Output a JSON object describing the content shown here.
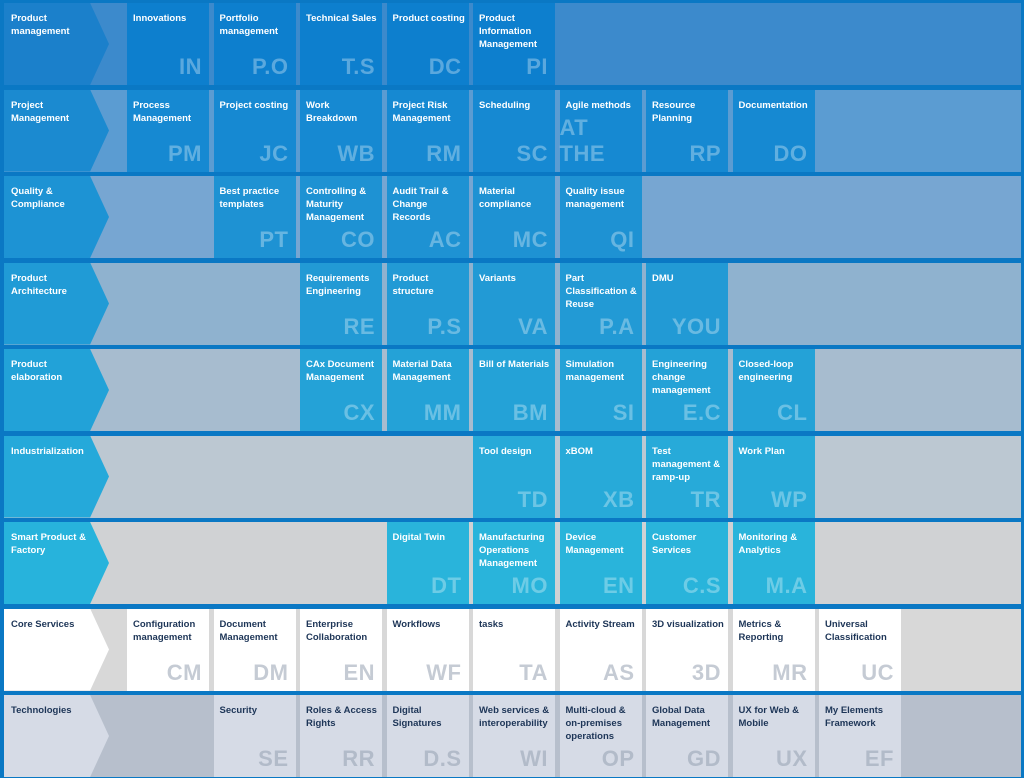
{
  "colors": {
    "frame": "#0a78c4",
    "core_bg": "#ffffff",
    "tech_bg": "#d6dbe6",
    "dark_text": "#1d3557"
  },
  "rows": [
    {
      "label": "Product management",
      "head_color": "#1b80cb",
      "row_color": "#3c8acc",
      "cell_color": "#0d7fce",
      "dark": false,
      "cells": [
        {
          "col": 1,
          "label": "Innovations",
          "code": "IN"
        },
        {
          "col": 2,
          "label": "Portfolio management",
          "code": "P.O"
        },
        {
          "col": 3,
          "label": "Technical Sales",
          "code": "T.S"
        },
        {
          "col": 4,
          "label": "Product costing",
          "code": "DC"
        },
        {
          "col": 5,
          "label": "Product Information Management",
          "code": "PI"
        }
      ]
    },
    {
      "label": "Project Management",
      "head_color": "#1b8ad0",
      "row_color": "#5b9cd2",
      "cell_color": "#1689d2",
      "dark": false,
      "cells": [
        {
          "col": 1,
          "label": "Process Management",
          "code": "PM"
        },
        {
          "col": 2,
          "label": "Project costing",
          "code": "JC"
        },
        {
          "col": 3,
          "label": "Work Breakdown",
          "code": "WB"
        },
        {
          "col": 4,
          "label": "Project Risk Management",
          "code": "RM"
        },
        {
          "col": 5,
          "label": "Scheduling",
          "code": "SC"
        },
        {
          "col": 6,
          "label": "Agile methods",
          "code": "AT THE"
        },
        {
          "col": 7,
          "label": "Resource Planning",
          "code": "RP"
        },
        {
          "col": 8,
          "label": "Documentation",
          "code": "DO"
        }
      ]
    },
    {
      "label": "Quality & Compliance",
      "head_color": "#1d93d4",
      "row_color": "#77a6d2",
      "cell_color": "#1e92d3",
      "dark": false,
      "cells": [
        {
          "col": 2,
          "label": "Best practice templates",
          "code": "PT"
        },
        {
          "col": 3,
          "label": "Controlling & Maturity Management",
          "code": "CO"
        },
        {
          "col": 4,
          "label": "Audit Trail & Change Records",
          "code": "AC"
        },
        {
          "col": 5,
          "label": "Material compliance",
          "code": "MC"
        },
        {
          "col": 6,
          "label": "Quality issue management",
          "code": "QI"
        }
      ]
    },
    {
      "label": "Product Architecture",
      "head_color": "#209bd6",
      "row_color": "#8fb2cf",
      "cell_color": "#229ad5",
      "dark": false,
      "cells": [
        {
          "col": 3,
          "label": "Requirements Engineering",
          "code": "RE"
        },
        {
          "col": 4,
          "label": "Product structure",
          "code": "P.S"
        },
        {
          "col": 5,
          "label": "Variants",
          "code": "VA"
        },
        {
          "col": 6,
          "label": "Part Classification & Reuse",
          "code": "P.A"
        },
        {
          "col": 7,
          "label": "DMU",
          "code": "YOU"
        }
      ]
    },
    {
      "label": "Product elaboration",
      "head_color": "#22a2d8",
      "row_color": "#a7bccf",
      "cell_color": "#24a2d7",
      "dark": false,
      "cells": [
        {
          "col": 3,
          "label": "CAx Document Management",
          "code": "CX"
        },
        {
          "col": 4,
          "label": "Material Data Management",
          "code": "MM"
        },
        {
          "col": 5,
          "label": "Bill of Materials",
          "code": "BM"
        },
        {
          "col": 6,
          "label": "Simulation management",
          "code": "SI"
        },
        {
          "col": 7,
          "label": "Engineering change management",
          "code": "E.C"
        },
        {
          "col": 8,
          "label": "Closed-loop engineering",
          "code": "CL"
        }
      ]
    },
    {
      "label": "Industrialization",
      "head_color": "#25a9da",
      "row_color": "#bcc8d2",
      "cell_color": "#27aad9",
      "dark": false,
      "cells": [
        {
          "col": 5,
          "label": "Tool design",
          "code": "TD"
        },
        {
          "col": 6,
          "label": "xBOM",
          "code": "XB"
        },
        {
          "col": 7,
          "label": "Test management & ramp-up",
          "code": "TR"
        },
        {
          "col": 8,
          "label": "Work Plan",
          "code": "WP"
        }
      ]
    },
    {
      "label": "Smart Product & Factory",
      "head_color": "#27b3dc",
      "row_color": "#d0d2d4",
      "cell_color": "#29b4db",
      "dark": false,
      "cells": [
        {
          "col": 4,
          "label": "Digital Twin",
          "code": "DT"
        },
        {
          "col": 5,
          "label": "Manufacturing Operations Management",
          "code": "MO"
        },
        {
          "col": 6,
          "label": "Device Management",
          "code": "EN"
        },
        {
          "col": 7,
          "label": "Customer Services",
          "code": "C.S"
        },
        {
          "col": 8,
          "label": "Monitoring & Analytics",
          "code": "M.A"
        }
      ]
    },
    {
      "label": "Core Services",
      "head_color": "#ffffff",
      "row_color": "#d8d8d8",
      "cell_color": "#ffffff",
      "dark": true,
      "cells": [
        {
          "col": 1,
          "label": "Configuration management",
          "code": "CM"
        },
        {
          "col": 2,
          "label": "Document Management",
          "code": "DM"
        },
        {
          "col": 3,
          "label": "Enterprise Collaboration",
          "code": "EN"
        },
        {
          "col": 4,
          "label": "Workflows",
          "code": "WF"
        },
        {
          "col": 5,
          "label": "tasks",
          "code": "TA"
        },
        {
          "col": 6,
          "label": "Activity Stream",
          "code": "AS"
        },
        {
          "col": 7,
          "label": "3D visualization",
          "code": "3D"
        },
        {
          "col": 8,
          "label": "Metrics & Reporting",
          "code": "MR"
        },
        {
          "col": 9,
          "label": "Universal Classification",
          "code": "UC"
        }
      ]
    },
    {
      "label": "Technologies",
      "head_color": "#d6dbe6",
      "row_color": "#b7bfcc",
      "cell_color": "#d6dbe6",
      "dark": true,
      "cells": [
        {
          "col": 2,
          "label": "Security",
          "code": "SE"
        },
        {
          "col": 3,
          "label": "Roles & Access Rights",
          "code": "RR"
        },
        {
          "col": 4,
          "label": "Digital Signatures",
          "code": "D.S"
        },
        {
          "col": 5,
          "label": "Web services & interoperability",
          "code": "WI"
        },
        {
          "col": 6,
          "label": "Multi-cloud & on-premises operations",
          "code": "OP"
        },
        {
          "col": 7,
          "label": "Global Data Management",
          "code": "GD"
        },
        {
          "col": 8,
          "label": "UX for Web & Mobile",
          "code": "UX"
        },
        {
          "col": 9,
          "label": "My Elements Framework",
          "code": "EF"
        }
      ]
    }
  ]
}
